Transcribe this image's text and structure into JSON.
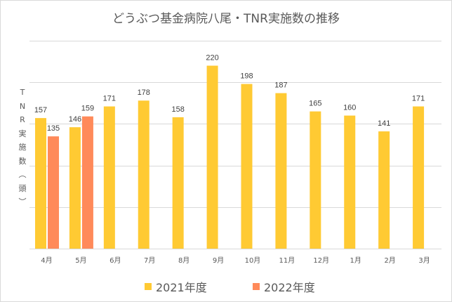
{
  "chart_data": {
    "type": "bar",
    "title": "どうぶつ基金病院八尾・TNR実施数の推移",
    "ylabel": "TNR実施数（頭）",
    "ylabel_chars": [
      "T",
      "N",
      "R",
      "実",
      "施",
      "数",
      "︵",
      "頭",
      "︶"
    ],
    "xlabel": "",
    "ylim": [
      0,
      250
    ],
    "gridlines": [
      0,
      50,
      100,
      150,
      200,
      250
    ],
    "categories": [
      "4月",
      "5月",
      "6月",
      "7月",
      "8月",
      "9月",
      "10月",
      "11月",
      "12月",
      "1月",
      "2月",
      "3月"
    ],
    "series": [
      {
        "name": "2021年度",
        "color": "#FFCA33",
        "values": [
          157,
          146,
          171,
          178,
          158,
          220,
          198,
          187,
          165,
          160,
          141,
          171
        ]
      },
      {
        "name": "2022年度",
        "color": "#FF8A5A",
        "values": [
          135,
          159,
          null,
          null,
          null,
          null,
          null,
          null,
          null,
          null,
          null,
          null
        ]
      }
    ],
    "legend_position": "bottom",
    "data_labels": true,
    "grid": true
  }
}
